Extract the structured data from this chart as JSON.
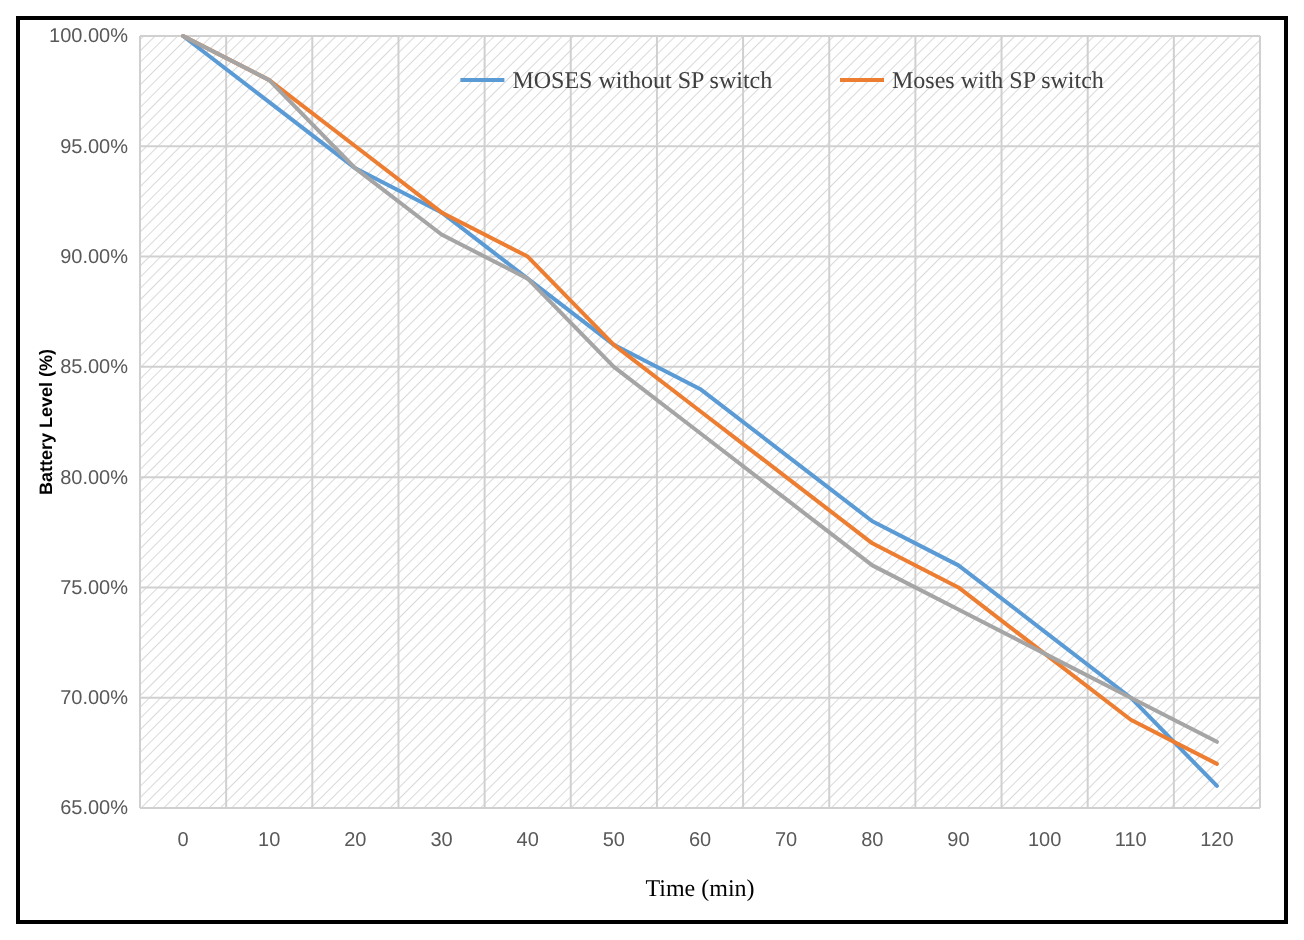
{
  "chart_data": {
    "type": "line",
    "xlabel": "Time (min)",
    "ylabel": "Battery Level (%)",
    "categories": [
      "0",
      "10",
      "20",
      "30",
      "40",
      "50",
      "60",
      "70",
      "80",
      "90",
      "100",
      "110",
      "120"
    ],
    "series": [
      {
        "name": "MOSES without SP switch",
        "color": "#5b9bd5",
        "values": [
          100,
          97,
          94,
          92,
          89,
          86,
          84,
          81,
          78,
          76,
          73,
          70,
          66
        ]
      },
      {
        "name": "Moses with SP switch",
        "color": "#ed7d31",
        "values": [
          100,
          98,
          95,
          92,
          90,
          86,
          83,
          80,
          77,
          75,
          72,
          69,
          67
        ]
      },
      {
        "color": "#a5a5a5",
        "values": [
          100,
          98,
          94,
          91,
          89,
          85,
          82,
          79,
          76,
          74,
          72,
          70,
          68
        ]
      }
    ],
    "ylim": [
      65,
      100
    ],
    "yticks": [
      {
        "value": 65,
        "label": "65.00%"
      },
      {
        "value": 70,
        "label": "70.00%"
      },
      {
        "value": 75,
        "label": "75.00%"
      },
      {
        "value": 80,
        "label": "80.00%"
      },
      {
        "value": 85,
        "label": "85.00%"
      },
      {
        "value": 90,
        "label": "90.00%"
      },
      {
        "value": 95,
        "label": "95.00%"
      },
      {
        "value": 100,
        "label": "100.00%"
      }
    ],
    "grid": true,
    "legend": "top right",
    "marker": "none",
    "line_style": "solid"
  }
}
